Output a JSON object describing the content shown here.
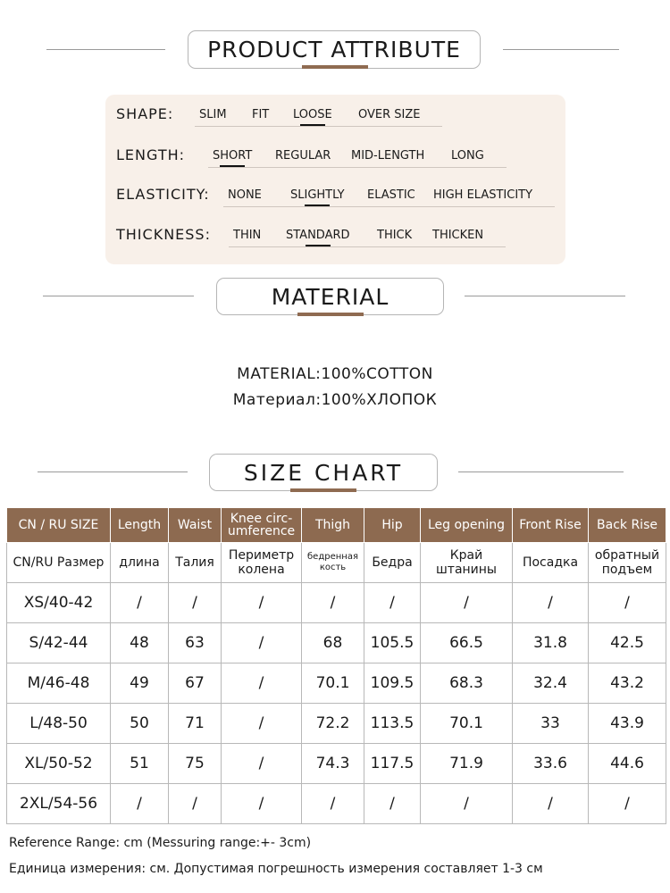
{
  "product_attribute": {
    "title": "PRODUCT ATTRIBUTE",
    "rows": [
      {
        "label": "SHAPE:",
        "options": [
          {
            "text": "SLIM",
            "selected": false
          },
          {
            "text": "FIT",
            "selected": false
          },
          {
            "text": "LOOSE",
            "selected": true
          },
          {
            "text": "OVER SIZE",
            "selected": false
          }
        ]
      },
      {
        "label": "LENGTH:",
        "options": [
          {
            "text": "SHORT",
            "selected": true
          },
          {
            "text": "REGULAR",
            "selected": false
          },
          {
            "text": "MID-LENGTH",
            "selected": false
          },
          {
            "text": "LONG",
            "selected": false
          }
        ]
      },
      {
        "label": "ELASTICITY:",
        "options": [
          {
            "text": "NONE",
            "selected": false
          },
          {
            "text": "SLIGHTLY",
            "selected": true
          },
          {
            "text": "ELASTIC",
            "selected": false
          },
          {
            "text": "HIGH ELASTICITY",
            "selected": false
          }
        ]
      },
      {
        "label": "THICKNESS:",
        "options": [
          {
            "text": "THIN",
            "selected": false
          },
          {
            "text": "STANDARD",
            "selected": true
          },
          {
            "text": "THICK",
            "selected": false
          },
          {
            "text": "THICKEN",
            "selected": false
          }
        ]
      }
    ]
  },
  "material": {
    "title": "MATERIAL",
    "lines": [
      "MATERIAL:100%COTTON",
      "Материал:100%ХЛОПОК"
    ]
  },
  "size_chart": {
    "title": "SIZE CHART",
    "header": [
      "CN / RU SIZE",
      "Length",
      "Waist",
      "Knee circ-umference",
      "Thigh",
      "Hip",
      "Leg opening",
      "Front Rise",
      "Back Rise"
    ],
    "header_ru": [
      "CN/RU Размер",
      "длина",
      "Талия",
      "Периметр колена",
      "бедренная кость",
      "Бедра",
      "Край штанины",
      "Посадка",
      "обратный подъем"
    ],
    "rows": [
      [
        "XS/40-42",
        "/",
        "/",
        "/",
        "/",
        "/",
        "/",
        "/",
        "/"
      ],
      [
        "S/42-44",
        48,
        63,
        "/",
        68,
        105.5,
        66.5,
        31.8,
        42.5
      ],
      [
        "M/46-48",
        49,
        67,
        "/",
        70.1,
        109.5,
        68.3,
        32.4,
        43.2
      ],
      [
        "L/48-50",
        50,
        71,
        "/",
        72.2,
        113.5,
        70.1,
        33,
        43.9
      ],
      [
        "XL/50-52",
        51,
        75,
        "/",
        74.3,
        117.5,
        71.9,
        33.6,
        44.6
      ],
      [
        "2XL/54-56",
        "/",
        "/",
        "/",
        "/",
        "/",
        "/",
        "/",
        "/"
      ]
    ]
  },
  "notes": [
    "Reference Range: cm (Messuring range:+- 3cm)",
    "Единица измерения: см. Допустимая погрешность измерения составляет 1-3 см"
  ]
}
